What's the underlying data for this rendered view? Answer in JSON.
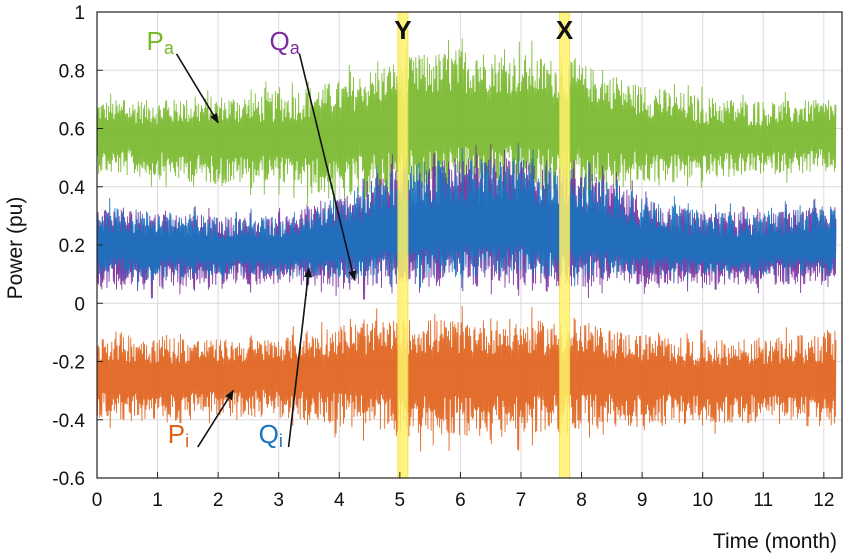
{
  "chart_data": {
    "type": "line",
    "xlabel": "Time (month)",
    "ylabel": "Power (pu)",
    "xlim": [
      0,
      12.3
    ],
    "ylim": [
      -0.6,
      1.0
    ],
    "xticks": [
      "0",
      "1",
      "2",
      "3",
      "4",
      "5",
      "6",
      "7",
      "8",
      "9",
      "10",
      "11",
      "12"
    ],
    "yticks": [
      "-0.6",
      "-0.4",
      "-0.2",
      "0",
      "0.2",
      "0.4",
      "0.6",
      "0.8",
      "1"
    ],
    "grid": true,
    "series": [
      {
        "name": "Pa",
        "main": "P",
        "sub": "a",
        "color": "#77b82a",
        "x": [
          0,
          1,
          2,
          3,
          4,
          5,
          6,
          7,
          8,
          9,
          10,
          11,
          12.2
        ],
        "mean": [
          0.58,
          0.57,
          0.56,
          0.56,
          0.58,
          0.62,
          0.64,
          0.64,
          0.62,
          0.58,
          0.56,
          0.56,
          0.58
        ],
        "band_low": [
          0.42,
          0.4,
          0.38,
          0.38,
          0.3,
          0.3,
          0.3,
          0.3,
          0.3,
          0.38,
          0.4,
          0.42,
          0.42
        ],
        "band_high": [
          0.72,
          0.72,
          0.74,
          0.76,
          0.8,
          0.88,
          0.92,
          0.9,
          0.86,
          0.78,
          0.74,
          0.72,
          0.72
        ]
      },
      {
        "name": "Qa",
        "main": "Q",
        "sub": "a",
        "color": "#7b2d9e",
        "x": [
          0,
          1,
          2,
          3,
          4,
          5,
          6,
          7,
          8,
          9,
          10,
          11,
          12.2
        ],
        "mean": [
          0.2,
          0.19,
          0.18,
          0.18,
          0.2,
          0.24,
          0.26,
          0.26,
          0.24,
          0.2,
          0.18,
          0.18,
          0.2
        ],
        "band_low": [
          0.02,
          0.02,
          0.04,
          0.04,
          0.02,
          0.02,
          0.02,
          0.02,
          0.02,
          0.04,
          0.04,
          0.04,
          0.04
        ],
        "band_high": [
          0.36,
          0.34,
          0.32,
          0.32,
          0.4,
          0.52,
          0.54,
          0.54,
          0.5,
          0.4,
          0.34,
          0.34,
          0.36
        ]
      },
      {
        "name": "Qi",
        "main": "Q",
        "sub": "i",
        "color": "#1b72be",
        "x": [
          0,
          1,
          2,
          3,
          4,
          5,
          6,
          7,
          8,
          9,
          10,
          11,
          12.2
        ],
        "mean": [
          0.2,
          0.19,
          0.18,
          0.18,
          0.2,
          0.24,
          0.26,
          0.26,
          0.24,
          0.2,
          0.18,
          0.18,
          0.2
        ],
        "band_low": [
          0.06,
          0.06,
          0.08,
          0.08,
          0.06,
          0.06,
          0.06,
          0.06,
          0.06,
          0.08,
          0.08,
          0.08,
          0.08
        ],
        "band_high": [
          0.36,
          0.34,
          0.32,
          0.32,
          0.4,
          0.52,
          0.54,
          0.54,
          0.5,
          0.4,
          0.34,
          0.34,
          0.36
        ]
      },
      {
        "name": "Pi",
        "main": "P",
        "sub": "i",
        "color": "#e0611a",
        "x": [
          0,
          1,
          2,
          3,
          4,
          5,
          6,
          7,
          8,
          9,
          10,
          11,
          12.2
        ],
        "mean": [
          -0.26,
          -0.26,
          -0.25,
          -0.24,
          -0.24,
          -0.24,
          -0.24,
          -0.24,
          -0.24,
          -0.25,
          -0.26,
          -0.26,
          -0.27
        ],
        "band_low": [
          -0.42,
          -0.44,
          -0.42,
          -0.42,
          -0.46,
          -0.5,
          -0.5,
          -0.5,
          -0.48,
          -0.46,
          -0.44,
          -0.44,
          -0.46
        ],
        "band_high": [
          -0.06,
          -0.08,
          -0.1,
          -0.1,
          -0.04,
          -0.02,
          -0.02,
          -0.02,
          -0.04,
          -0.08,
          -0.1,
          -0.1,
          -0.06
        ]
      }
    ],
    "markers": [
      {
        "label": "Y",
        "x": 5.05
      },
      {
        "label": "X",
        "x": 7.72
      }
    ],
    "annotations": [
      {
        "series": "Pa",
        "main": "P",
        "sub": "a",
        "text_at": [
          0.95,
          0.87
        ],
        "arrow_to": [
          2.0,
          0.62
        ]
      },
      {
        "series": "Qa",
        "main": "Q",
        "sub": "a",
        "text_at": [
          2.98,
          0.87
        ],
        "arrow_to": [
          4.25,
          0.08
        ]
      },
      {
        "series": "Qi",
        "main": "Q",
        "sub": "i",
        "text_at": [
          2.8,
          -0.48
        ],
        "arrow_to": [
          3.5,
          0.12
        ]
      },
      {
        "series": "Pi",
        "main": "P",
        "sub": "i",
        "text_at": [
          1.3,
          -0.48
        ],
        "arrow_to": [
          2.25,
          -0.3
        ]
      }
    ]
  }
}
